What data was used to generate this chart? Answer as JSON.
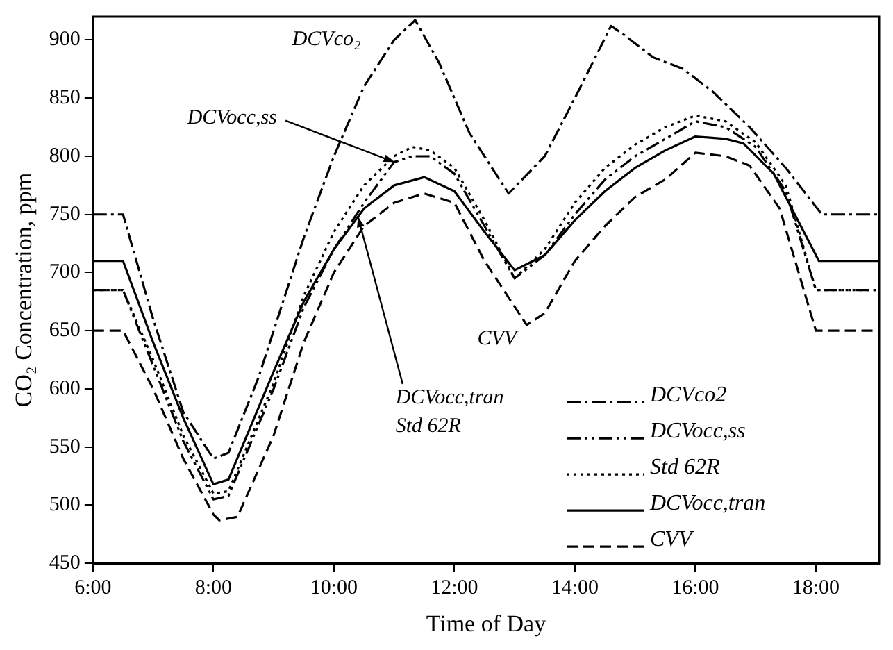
{
  "chart_data": {
    "type": "line",
    "xlabel": "Time of Day",
    "ylabel": "CO₂ Concentration, ppm",
    "xlim": [
      6,
      19.05
    ],
    "xticks": [
      {
        "value": 6,
        "label": "6:00"
      },
      {
        "value": 8,
        "label": "8:00"
      },
      {
        "value": 10,
        "label": "10:00"
      },
      {
        "value": 12,
        "label": "12:00"
      },
      {
        "value": 14,
        "label": "14:00"
      },
      {
        "value": 16,
        "label": "16:00"
      },
      {
        "value": 18,
        "label": "18:00"
      }
    ],
    "ylim": [
      450,
      920
    ],
    "yticks": [
      450,
      500,
      550,
      600,
      650,
      700,
      750,
      800,
      850,
      900
    ],
    "grid": false,
    "legend": "bottom right",
    "series": [
      {
        "name": "DCVco2",
        "color": "#000000",
        "line_style": "dashdot",
        "x": [
          6,
          6.5,
          7,
          7.5,
          8,
          8.25,
          8.75,
          9.5,
          10,
          10.5,
          11,
          11.35,
          11.75,
          12.25,
          12.9,
          13.5,
          14,
          14.6,
          14.8,
          15.3,
          15.8,
          16.3,
          16.9,
          17.5,
          18.1,
          19.05
        ],
        "values": [
          750,
          750,
          660,
          580,
          540,
          545,
          610,
          730,
          800,
          860,
          900,
          917,
          880,
          820,
          768,
          800,
          850,
          912,
          905,
          885,
          875,
          855,
          825,
          790,
          750,
          750
        ]
      },
      {
        "name": "DCVocc,ss",
        "color": "#000000",
        "line_style": "dashdotdot",
        "x": [
          6,
          6.5,
          7,
          7.5,
          8,
          8.25,
          9,
          9.5,
          10,
          10.5,
          11,
          11.3,
          11.6,
          12,
          12.5,
          13,
          13.5,
          14,
          14.5,
          15,
          15.5,
          16,
          16.5,
          17,
          17.5,
          18,
          19.05
        ],
        "values": [
          685,
          685,
          620,
          555,
          505,
          508,
          600,
          670,
          720,
          760,
          795,
          800,
          800,
          785,
          740,
          695,
          715,
          750,
          780,
          800,
          815,
          830,
          825,
          808,
          770,
          685,
          685
        ]
      },
      {
        "name": "Std 62R",
        "color": "#000000",
        "line_style": "dotted",
        "x": [
          6,
          6.5,
          7,
          7.5,
          8,
          8.25,
          9,
          9.5,
          10,
          10.5,
          11,
          11.3,
          11.6,
          12,
          12.5,
          13,
          13.5,
          14,
          14.5,
          15,
          15.5,
          16,
          16.5,
          17,
          17.5,
          18,
          19.05
        ],
        "values": [
          685,
          685,
          625,
          560,
          510,
          512,
          605,
          680,
          735,
          775,
          800,
          808,
          805,
          790,
          745,
          695,
          720,
          760,
          790,
          810,
          825,
          835,
          830,
          812,
          775,
          685,
          685
        ]
      },
      {
        "name": "DCVocc,tran",
        "color": "#000000",
        "line_style": "solid",
        "x": [
          6,
          6.5,
          7,
          7.5,
          8,
          8.25,
          9,
          9.5,
          10,
          10.5,
          11,
          11.5,
          12,
          12.5,
          13,
          13.5,
          14,
          14.5,
          15,
          15.5,
          16,
          16.5,
          16.8,
          17.3,
          17.7,
          18.05,
          19.05
        ],
        "values": [
          710,
          710,
          640,
          575,
          518,
          522,
          615,
          675,
          720,
          755,
          775,
          782,
          770,
          735,
          702,
          715,
          745,
          770,
          790,
          805,
          817,
          815,
          811,
          785,
          745,
          710,
          710
        ]
      },
      {
        "name": "CVV",
        "color": "#000000",
        "line_style": "dashed",
        "x": [
          6,
          6.5,
          7,
          7.5,
          8,
          8.1,
          8.4,
          9,
          9.5,
          10,
          10.5,
          11,
          11.5,
          12,
          12.5,
          13.2,
          13.5,
          14,
          14.5,
          15,
          15.5,
          16,
          16.5,
          16.9,
          17.4,
          18,
          19.05
        ],
        "values": [
          650,
          650,
          600,
          540,
          492,
          487,
          490,
          560,
          640,
          700,
          740,
          760,
          768,
          760,
          710,
          655,
          665,
          710,
          740,
          765,
          780,
          803,
          800,
          792,
          755,
          650,
          650
        ]
      }
    ],
    "annotations": [
      "DCVco₂",
      {
        "text": "DCVocc,ss",
        "x": 11.0,
        "y": 795
      },
      {
        "text": "DCVocc,tran",
        "x": 10.4,
        "y": 748
      },
      "Std 62R",
      "CVV"
    ]
  }
}
